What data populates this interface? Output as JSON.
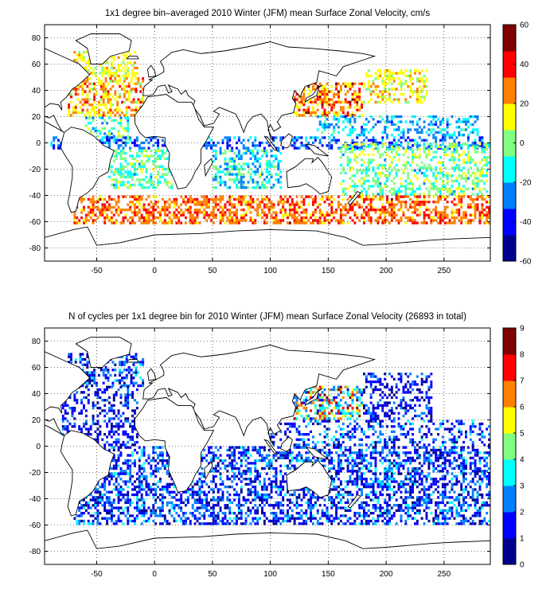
{
  "chart_data": [
    {
      "type": "heatmap",
      "title": "1x1 degree bin–averaged 2010 Winter (JFM) mean Surface Zonal Velocity, cm/s",
      "xlim": [
        -95,
        290
      ],
      "ylim": [
        -90,
        90
      ],
      "xticks": [
        -50,
        0,
        50,
        100,
        150,
        200,
        250
      ],
      "yticks": [
        -80,
        -60,
        -40,
        -20,
        0,
        20,
        40,
        60,
        80
      ],
      "grid": "dotted",
      "colorbar": {
        "min": -60,
        "max": 60,
        "ticks": [
          -60,
          -40,
          -20,
          0,
          20,
          40,
          60
        ],
        "colormap": "jet",
        "colors": [
          "#00008f",
          "#0000ff",
          "#0080ff",
          "#00ffff",
          "#80ff80",
          "#ffff00",
          "#ff8000",
          "#ff0000",
          "#800000"
        ]
      },
      "bands": [
        {
          "lat": [
            50,
            70
          ],
          "lon": [
            -70,
            -15
          ],
          "values": [
            5,
            12,
            18,
            10,
            22
          ],
          "density": 0.45
        },
        {
          "lat": [
            20,
            50
          ],
          "lon": [
            -75,
            -10
          ],
          "values": [
            10,
            28,
            20,
            35,
            15
          ],
          "density": 0.5
        },
        {
          "lat": [
            0,
            20
          ],
          "lon": [
            -60,
            -20
          ],
          "values": [
            -15,
            -25,
            0,
            -10,
            5
          ],
          "density": 0.35
        },
        {
          "lat": [
            -5,
            5
          ],
          "lon": [
            -90,
            290
          ],
          "values": [
            -35,
            -25,
            -30,
            -20,
            -40
          ],
          "density": 0.45
        },
        {
          "lat": [
            -35,
            -5
          ],
          "lon": [
            -40,
            15
          ],
          "values": [
            -10,
            -5,
            5,
            -15,
            0
          ],
          "density": 0.45
        },
        {
          "lat": [
            -35,
            -5
          ],
          "lon": [
            50,
            110
          ],
          "values": [
            -15,
            -25,
            -5,
            0,
            -20
          ],
          "density": 0.45
        },
        {
          "lat": [
            -40,
            0
          ],
          "lon": [
            160,
            290
          ],
          "values": [
            -5,
            5,
            -15,
            0,
            10
          ],
          "density": 0.4
        },
        {
          "lat": [
            20,
            45
          ],
          "lon": [
            120,
            180
          ],
          "values": [
            20,
            35,
            45,
            25,
            15
          ],
          "density": 0.55
        },
        {
          "lat": [
            5,
            20
          ],
          "lon": [
            140,
            280
          ],
          "values": [
            -15,
            -25,
            -30,
            -10,
            -20
          ],
          "density": 0.4
        },
        {
          "lat": [
            30,
            55
          ],
          "lon": [
            180,
            235
          ],
          "values": [
            10,
            18,
            5,
            12,
            20
          ],
          "density": 0.45
        },
        {
          "lat": [
            -62,
            -40
          ],
          "lon": [
            -70,
            290
          ],
          "values": [
            20,
            30,
            35,
            25,
            40
          ],
          "density": 0.55
        }
      ]
    },
    {
      "type": "heatmap",
      "title": "N of cycles per 1x1 degree bin for 2010 Winter (JFM) mean Surface Zonal Velocity (26893 in total)",
      "total_cycles": 26893,
      "xlim": [
        -95,
        290
      ],
      "ylim": [
        -90,
        90
      ],
      "xticks": [
        -50,
        0,
        50,
        100,
        150,
        200,
        250
      ],
      "yticks": [
        -80,
        -60,
        -40,
        -20,
        0,
        20,
        40,
        60,
        80
      ],
      "grid": "dotted",
      "colorbar": {
        "min": 0,
        "max": 9,
        "ticks": [
          0,
          1,
          2,
          3,
          4,
          5,
          6,
          7,
          8,
          9
        ],
        "colormap": "jet",
        "colors": [
          "#00008f",
          "#0000ff",
          "#0080ff",
          "#00ffff",
          "#80ff80",
          "#ffff00",
          "#ff8000",
          "#ff0000",
          "#800000"
        ]
      },
      "bands": [
        {
          "lat": [
            45,
            70
          ],
          "lon": [
            -75,
            -10
          ],
          "values": [
            1,
            2,
            1,
            2,
            3
          ],
          "density": 0.45
        },
        {
          "lat": [
            0,
            45
          ],
          "lon": [
            -80,
            -15
          ],
          "values": [
            1,
            2,
            1,
            1,
            2
          ],
          "density": 0.4
        },
        {
          "lat": [
            -60,
            0
          ],
          "lon": [
            -70,
            290
          ],
          "values": [
            1,
            2,
            2,
            1,
            3
          ],
          "density": 0.5
        },
        {
          "lat": [
            20,
            45
          ],
          "lon": [
            120,
            180
          ],
          "values": [
            2,
            3,
            6,
            4,
            8
          ],
          "density": 0.5
        },
        {
          "lat": [
            0,
            20
          ],
          "lon": [
            100,
            290
          ],
          "values": [
            1,
            2,
            1,
            3,
            2
          ],
          "density": 0.35
        },
        {
          "lat": [
            20,
            55
          ],
          "lon": [
            180,
            240
          ],
          "values": [
            1,
            2,
            1,
            2,
            1
          ],
          "density": 0.4
        }
      ]
    }
  ]
}
